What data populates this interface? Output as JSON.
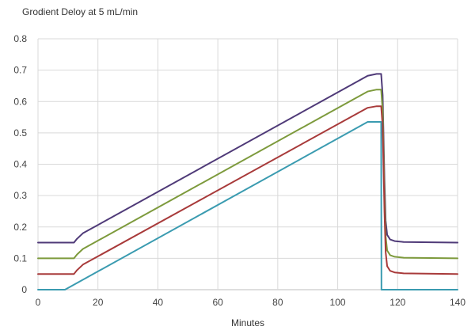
{
  "chart_data": {
    "type": "line",
    "title": "Grodient Deloy at 5 mL/min",
    "xlabel": "Minutes",
    "ylabel": "",
    "xlim": [
      0,
      140
    ],
    "ylim": [
      0,
      0.8
    ],
    "xticks": [
      0,
      20,
      40,
      60,
      80,
      100,
      120,
      140
    ],
    "yticks": [
      0,
      0.1,
      0.2,
      0.3,
      0.4,
      0.5,
      0.6,
      0.7,
      0.8
    ],
    "xtick_labels": [
      "0",
      "20",
      "40",
      "60",
      "80",
      "100",
      "120",
      "140"
    ],
    "ytick_labels": [
      "0",
      "0.1",
      "0.2",
      "0.3",
      "0.4",
      "0.5",
      "0.6",
      "0.7",
      "0.8"
    ],
    "grid": true,
    "legend": "none",
    "series": [
      {
        "color": "#4f3a78",
        "x": [
          0,
          12,
          13,
          15,
          110,
          113,
          114.5,
          115,
          115.6,
          116,
          116.5,
          117.5,
          119,
          122,
          140
        ],
        "y": [
          0.15,
          0.15,
          0.162,
          0.18,
          0.682,
          0.688,
          0.688,
          0.62,
          0.35,
          0.22,
          0.175,
          0.16,
          0.155,
          0.152,
          0.15
        ]
      },
      {
        "color": "#7d9a3c",
        "x": [
          0,
          12,
          13,
          15,
          110,
          113,
          114.5,
          115,
          115.6,
          116,
          116.5,
          117.5,
          119,
          122,
          140
        ],
        "y": [
          0.1,
          0.1,
          0.112,
          0.13,
          0.632,
          0.638,
          0.638,
          0.57,
          0.3,
          0.17,
          0.125,
          0.11,
          0.105,
          0.102,
          0.1
        ]
      },
      {
        "color": "#a83a3a",
        "x": [
          0,
          12,
          13,
          15,
          110,
          113,
          114.5,
          115,
          115.6,
          116,
          116.5,
          117.5,
          119,
          122,
          140
        ],
        "y": [
          0.05,
          0.05,
          0.062,
          0.08,
          0.58,
          0.585,
          0.585,
          0.52,
          0.25,
          0.12,
          0.075,
          0.06,
          0.055,
          0.052,
          0.05
        ]
      },
      {
        "color": "#3a9bb0",
        "x": [
          0,
          9,
          110,
          114.5,
          114.6,
          140
        ],
        "y": [
          0,
          0,
          0.535,
          0.535,
          0,
          0
        ]
      }
    ]
  }
}
